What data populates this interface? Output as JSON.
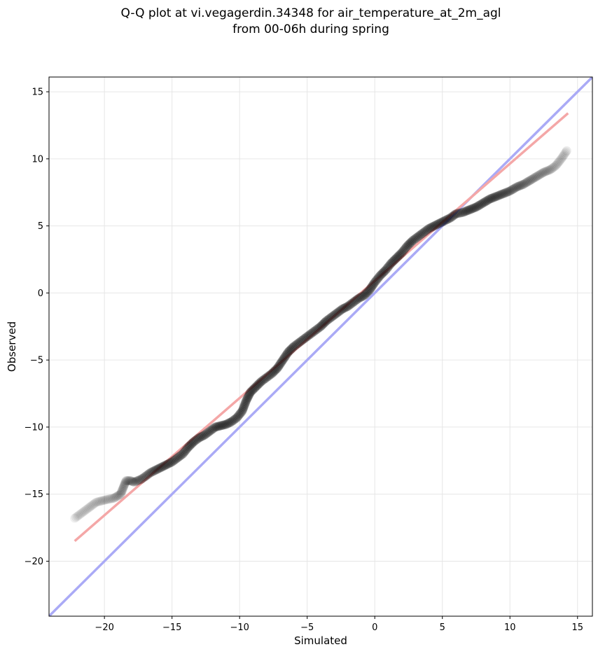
{
  "chart_data": {
    "type": "scatter",
    "title_line1": "Q-Q plot at vi.vegagerdin.34348 for air_temperature_at_2m_agl",
    "title_line2": "from 00-06h during spring",
    "xlabel": "Simulated",
    "ylabel": "Observed",
    "xlim": [
      -24.1,
      16.1
    ],
    "ylim": [
      -24.1,
      16.1
    ],
    "xticks": [
      -20,
      -15,
      -10,
      -5,
      0,
      5,
      10,
      15
    ],
    "yticks": [
      -20,
      -15,
      -10,
      -5,
      0,
      5,
      10,
      15
    ],
    "grid": true,
    "colors": {
      "points": "#000000",
      "identity_line": "#aaaaf6",
      "fit_line": "#f4a7a7",
      "grid": "#e6e6e6"
    },
    "identity_line": {
      "x": [
        -24.1,
        16.1
      ],
      "y": [
        -24.1,
        16.1
      ]
    },
    "fit_line": {
      "x": [
        -22.2,
        14.3
      ],
      "y": [
        -18.5,
        13.4
      ]
    },
    "quantiles": {
      "x": [
        -22.2,
        -20.6,
        -19.8,
        -19.3,
        -18.8,
        -18.4,
        -18.1,
        -17.8,
        -17.3,
        -17.0,
        -16.6,
        -16.2,
        -15.8,
        -15.4,
        -15.0,
        -14.6,
        -14.2,
        -13.8,
        -13.4,
        -13.0,
        -12.6,
        -12.2,
        -11.8,
        -11.4,
        -11.0,
        -10.6,
        -10.2,
        -9.8,
        -9.5,
        -9.2,
        -8.8,
        -8.4,
        -8.0,
        -7.6,
        -7.2,
        -6.8,
        -6.4,
        -6.0,
        -5.6,
        -5.2,
        -4.8,
        -4.4,
        -4.0,
        -3.6,
        -3.2,
        -2.8,
        -2.4,
        -2.0,
        -1.6,
        -1.2,
        -0.8,
        -0.4,
        0.0,
        0.4,
        0.8,
        1.2,
        1.6,
        2.0,
        2.4,
        2.8,
        3.2,
        3.6,
        4.0,
        4.4,
        4.8,
        5.2,
        5.6,
        6.0,
        6.5,
        7.0,
        7.5,
        8.0,
        8.5,
        9.0,
        9.5,
        10.0,
        10.5,
        11.0,
        11.5,
        12.0,
        12.5,
        13.0,
        13.4,
        13.8,
        14.2
      ],
      "y": [
        -16.8,
        -15.6,
        -15.4,
        -15.3,
        -15.0,
        -14.0,
        -14.0,
        -14.1,
        -13.9,
        -13.7,
        -13.4,
        -13.2,
        -13.0,
        -12.8,
        -12.6,
        -12.3,
        -12.0,
        -11.5,
        -11.1,
        -10.8,
        -10.6,
        -10.3,
        -10.0,
        -9.9,
        -9.8,
        -9.6,
        -9.3,
        -8.8,
        -8.0,
        -7.4,
        -7.0,
        -6.6,
        -6.3,
        -6.0,
        -5.6,
        -5.0,
        -4.4,
        -4.0,
        -3.7,
        -3.4,
        -3.1,
        -2.8,
        -2.5,
        -2.1,
        -1.8,
        -1.5,
        -1.2,
        -1.0,
        -0.7,
        -0.4,
        -0.2,
        0.2,
        0.8,
        1.3,
        1.7,
        2.2,
        2.6,
        3.0,
        3.5,
        3.9,
        4.2,
        4.5,
        4.8,
        5.0,
        5.2,
        5.4,
        5.6,
        5.9,
        6.0,
        6.2,
        6.4,
        6.7,
        7.0,
        7.2,
        7.4,
        7.6,
        7.9,
        8.1,
        8.4,
        8.7,
        9.0,
        9.2,
        9.5,
        10.0,
        10.6
      ]
    }
  }
}
